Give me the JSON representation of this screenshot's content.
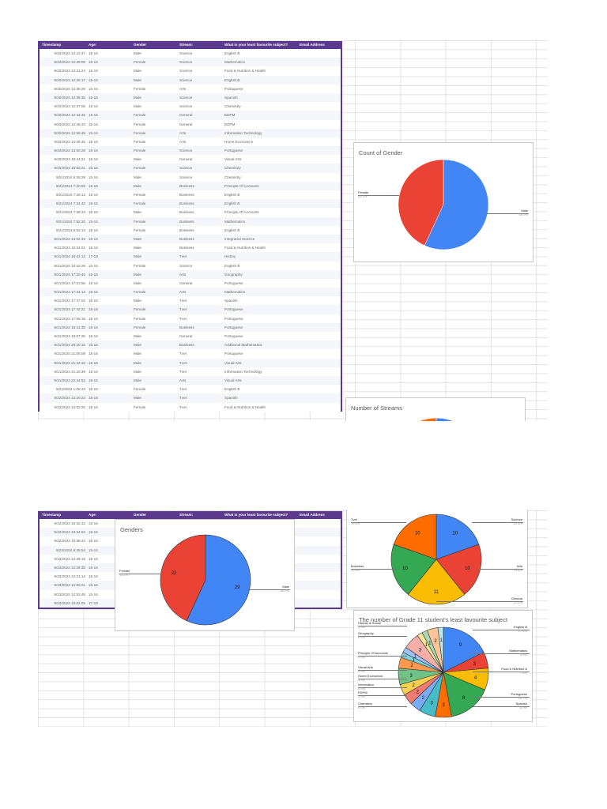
{
  "sheet": {
    "headers": [
      "Timestamp",
      "Age:",
      "Gender",
      "Stream:",
      "What is your least favourite subject?",
      "Email Address"
    ],
    "page1_rows": [
      [
        "9/20/2024 12:22:47",
        "15-16",
        "Male",
        "Science",
        "English B",
        ""
      ],
      [
        "9/20/2024 12:28:08",
        "15-16",
        "Female",
        "Science",
        "Mathematics",
        ""
      ],
      [
        "9/20/2024 12:31:24",
        "15-16",
        "Male",
        "Science",
        "Food & Nutrition & Health",
        ""
      ],
      [
        "9/20/2024 12:35:17",
        "15-16",
        "Male",
        "Science",
        "English B",
        ""
      ],
      [
        "9/20/2024 12:35:26",
        "15-16",
        "Female",
        "Arts",
        "Portuguese",
        ""
      ],
      [
        "9/20/2024 12:36:35",
        "15-16",
        "Male",
        "Science",
        "Spanish",
        ""
      ],
      [
        "9/20/2024 12:37:06",
        "15-16",
        "Male",
        "Science",
        "Chemistry",
        ""
      ],
      [
        "9/20/2024 12:43:45",
        "15-16",
        "Female",
        "General",
        "EDPM",
        ""
      ],
      [
        "9/20/2024 12:46:43",
        "15-16",
        "Female",
        "General",
        "EDPM",
        ""
      ],
      [
        "9/20/2024 12:55:46",
        "15-16",
        "Female",
        "Arts",
        "Information Technology",
        ""
      ],
      [
        "9/20/2024 13:26:45",
        "15-16",
        "Female",
        "Arts",
        "Home Economics",
        ""
      ],
      [
        "9/20/2024 14:50:28",
        "15-16",
        "Female",
        "Science",
        "Portuguese",
        ""
      ],
      [
        "9/20/2024 18:44:21",
        "15-16",
        "Male",
        "General",
        "Visual Arts",
        ""
      ],
      [
        "9/20/2024 18:53:21",
        "15-16",
        "Female",
        "Science",
        "Chemistry",
        ""
      ],
      [
        "9/21/2024 6:26:28",
        "15-16",
        "Male",
        "Science",
        "Chemistry",
        ""
      ],
      [
        "9/21/2024 7:20:55",
        "15-16",
        "Male",
        "Business",
        "Principle Of Accounts",
        ""
      ],
      [
        "9/21/2024 7:28:12",
        "15-16",
        "Female",
        "Business",
        "English B",
        ""
      ],
      [
        "9/21/2024 7:34:40",
        "15-16",
        "Female",
        "Business",
        "English B",
        ""
      ],
      [
        "9/21/2024 7:38:33",
        "15-16",
        "Male",
        "Business",
        "Principle Of Accounts",
        ""
      ],
      [
        "9/21/2024 7:52:30",
        "15-16",
        "Female",
        "Business",
        "Mathematics",
        ""
      ],
      [
        "9/21/2024 8:52:13",
        "15-16",
        "Female",
        "Business",
        "English B",
        ""
      ],
      [
        "9/21/2024 14:02:43",
        "15-16",
        "Male",
        "Business",
        "Integrated Science",
        ""
      ],
      [
        "9/21/2024 16:34:01",
        "15-16",
        "Male",
        "Business",
        "Food & Nutrition & Health",
        ""
      ],
      [
        "9/21/2024 16:42:13",
        "17-18",
        "Male",
        "Tvet",
        "History",
        ""
      ],
      [
        "9/21/2024 16:43:28",
        "15-16",
        "Female",
        "Science",
        "English B",
        ""
      ],
      [
        "9/21/2024 17:20:46",
        "15-16",
        "Male",
        "Arts",
        "Geography",
        ""
      ],
      [
        "9/21/2024 17:21:56",
        "15-16",
        "Male",
        "General",
        "Portuguese",
        ""
      ],
      [
        "9/21/2024 17:34:13",
        "15-16",
        "Female",
        "Arts",
        "Mathematics",
        ""
      ],
      [
        "9/21/2024 17:37:02",
        "15-16",
        "Male",
        "Tvet",
        "Spanish",
        ""
      ],
      [
        "9/21/2024 17:42:21",
        "15-16",
        "Female",
        "Tvet",
        "Portuguese",
        ""
      ],
      [
        "9/21/2024 17:55:18",
        "15-16",
        "Female",
        "Tvet",
        "Portuguese",
        ""
      ],
      [
        "9/21/2024 18:41:35",
        "15-16",
        "Female",
        "Business",
        "Portuguese",
        ""
      ],
      [
        "9/21/2024 19:07:26",
        "15-16",
        "Male",
        "General",
        "Portuguese",
        ""
      ],
      [
        "9/21/2024 20:10:15",
        "15-16",
        "Male",
        "Business",
        "Additional Mathematics",
        ""
      ],
      [
        "9/21/2024 21:09:08",
        "15-16",
        "Male",
        "Tvet",
        "Portuguese",
        ""
      ],
      [
        "9/21/2024 21:12:10",
        "15-16",
        "Male",
        "Tvet",
        "Visual Arts",
        ""
      ],
      [
        "9/21/2024 21:20:39",
        "15-16",
        "Male",
        "Tvet",
        "Information Technology",
        ""
      ],
      [
        "9/21/2024 22:44:52",
        "15-16",
        "Male",
        "Arts",
        "Visual Arts",
        ""
      ],
      [
        "9/22/2024 1:08:42",
        "15-16",
        "Female",
        "Tvet",
        "English B",
        ""
      ],
      [
        "9/22/2024 13:20:23",
        "15-16",
        "Male",
        "Tvet",
        "Spanish",
        ""
      ],
      [
        "9/22/2024 14:52:20",
        "15-16",
        "Female",
        "Tvet",
        "Food & Nutrition & Health",
        ""
      ]
    ],
    "page2_rows": [
      [
        "9/22/2024 19:32:42",
        "15-16"
      ],
      [
        "9/22/2024 19:34:04",
        "15-16"
      ],
      [
        "9/22/2024 19:38:44",
        "15-16"
      ],
      [
        "9/23/2024 8:45:54",
        "15-16"
      ],
      [
        "9/23/2024 12:26:19",
        "15-16"
      ],
      [
        "9/23/2024 12:29:35",
        "15-16"
      ],
      [
        "9/23/2024 12:31:14",
        "15-16"
      ],
      [
        "9/23/2024 12:53:21",
        "15-16"
      ],
      [
        "9/23/2024 12:53:48",
        "15-16"
      ],
      [
        "9/23/2024 19:02:05",
        "17-18"
      ]
    ],
    "header_color": "#5b3a8e"
  },
  "chart_data": [
    {
      "type": "pie",
      "title": "Count of Gender",
      "categories": [
        "Male",
        "Female"
      ],
      "values": [
        29,
        22
      ],
      "colors": [
        "#4285f4",
        "#ea4335"
      ],
      "labels": [
        {
          "name": "Female",
          "pct": "43.1%"
        },
        {
          "name": "Male",
          "pct": "56.9%"
        }
      ]
    },
    {
      "type": "pie",
      "title": "Number of Streams",
      "categories": [
        "Science",
        "Arts",
        "General",
        "Business",
        "Tvet"
      ],
      "values": [
        10,
        10,
        11,
        10,
        10
      ],
      "colors": [
        "#4285f4",
        "#ea4335",
        "#fbbc04",
        "#34a853",
        "#ff6d01"
      ],
      "labels": [
        {
          "name": "Tvet",
          "pct": "19.6%"
        },
        {
          "name": "Science",
          "pct": "19.6%"
        },
        {
          "name": "Business",
          "pct": "19.6%"
        },
        {
          "name": "Arts",
          "pct": "19.6%"
        },
        {
          "name": "General",
          "pct": "21.6%"
        }
      ]
    },
    {
      "type": "pie",
      "title": "Genders",
      "categories": [
        "Male",
        "Female"
      ],
      "values": [
        29,
        22
      ],
      "colors": [
        "#4285f4",
        "#ea4335"
      ],
      "labels": [
        {
          "name": "Female",
          "pct": "43.1%"
        },
        {
          "name": "Male",
          "pct": "56.9%"
        }
      ]
    },
    {
      "type": "pie",
      "title": "The number of Grade 11 student's least favourite subject",
      "categories": [
        "English B",
        "Mathematics",
        "Food & Nutrition &",
        "Portuguese",
        "Spanish",
        "Chemistry",
        "EDPM",
        "Information",
        "Home Economics",
        "Visual Arts",
        "Principle Of Accounts",
        "",
        "",
        "Geography",
        "",
        "",
        "Human & Social",
        ""
      ],
      "values": [
        9,
        3,
        4,
        8,
        3,
        3,
        2,
        2,
        2,
        3,
        2,
        1,
        1,
        3,
        1,
        1,
        2,
        1
      ],
      "colors": [
        "#4285f4",
        "#ea4335",
        "#fbbc04",
        "#34a853",
        "#ff6d01",
        "#46bdc6",
        "#7baaf7",
        "#f07b72",
        "#fcd04f",
        "#71c287",
        "#ff994d",
        "#7ed1d7",
        "#a0c2f9",
        "#f6aea9",
        "#fde49b",
        "#a8dab5",
        "#ffc599",
        "#b5e8eb"
      ],
      "labels": [
        {
          "name": "Human & Social",
          "pct": "3.9%"
        },
        {
          "name": "Geography",
          "pct": "5.9%"
        },
        {
          "name": "Principle Of Accounts",
          "pct": "3.9%"
        },
        {
          "name": "Visual Arts",
          "pct": "5.9%"
        },
        {
          "name": "Home Economics",
          "pct": "3.9%"
        },
        {
          "name": "Information",
          "pct": "3.9%"
        },
        {
          "name": "EDPM",
          "pct": "3.9%"
        },
        {
          "name": "Chemistry",
          "pct": "5.9%"
        },
        {
          "name": "English B",
          "pct": "17.6%"
        },
        {
          "name": "Mathematics",
          "pct": "5.9%"
        },
        {
          "name": "Food & Nutrition &",
          "pct": "7.8%"
        },
        {
          "name": "Portuguese",
          "pct": "15.7%"
        },
        {
          "name": "Spanish",
          "pct": "5.9%"
        }
      ]
    }
  ]
}
